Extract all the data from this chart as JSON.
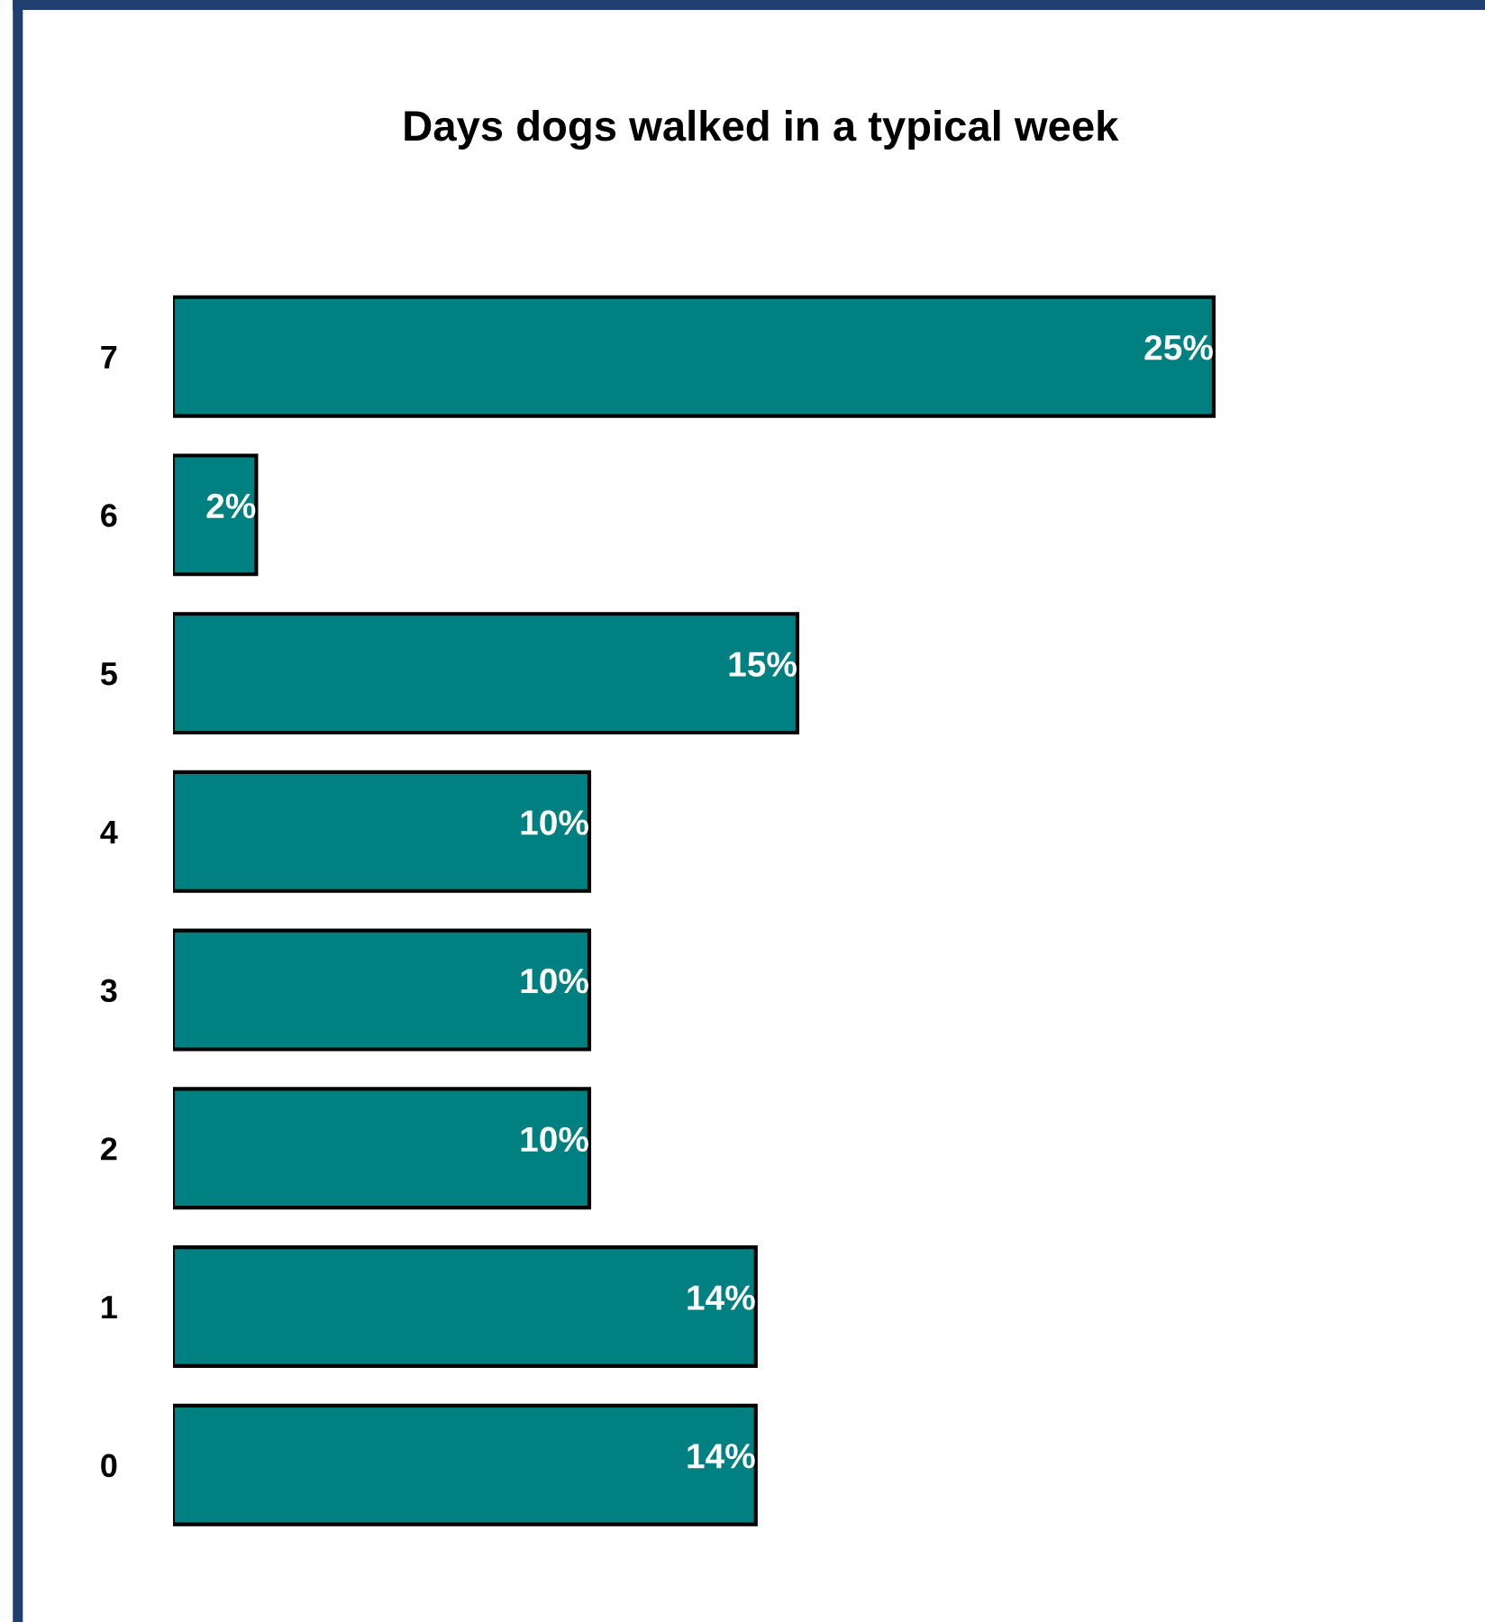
{
  "chart_data": {
    "type": "bar",
    "orientation": "horizontal",
    "title": "Days dogs walked in a typical week",
    "categories": [
      "7",
      "6",
      "5",
      "4",
      "3",
      "2",
      "1",
      "0"
    ],
    "values": [
      25,
      2,
      15,
      10,
      10,
      10,
      14,
      14
    ],
    "value_labels": [
      "25%",
      "2%",
      "15%",
      "10%",
      "10%",
      "10%",
      "14%",
      "14%"
    ],
    "color": "#008080",
    "grid": false,
    "legend": false,
    "tick_labels": "y"
  }
}
